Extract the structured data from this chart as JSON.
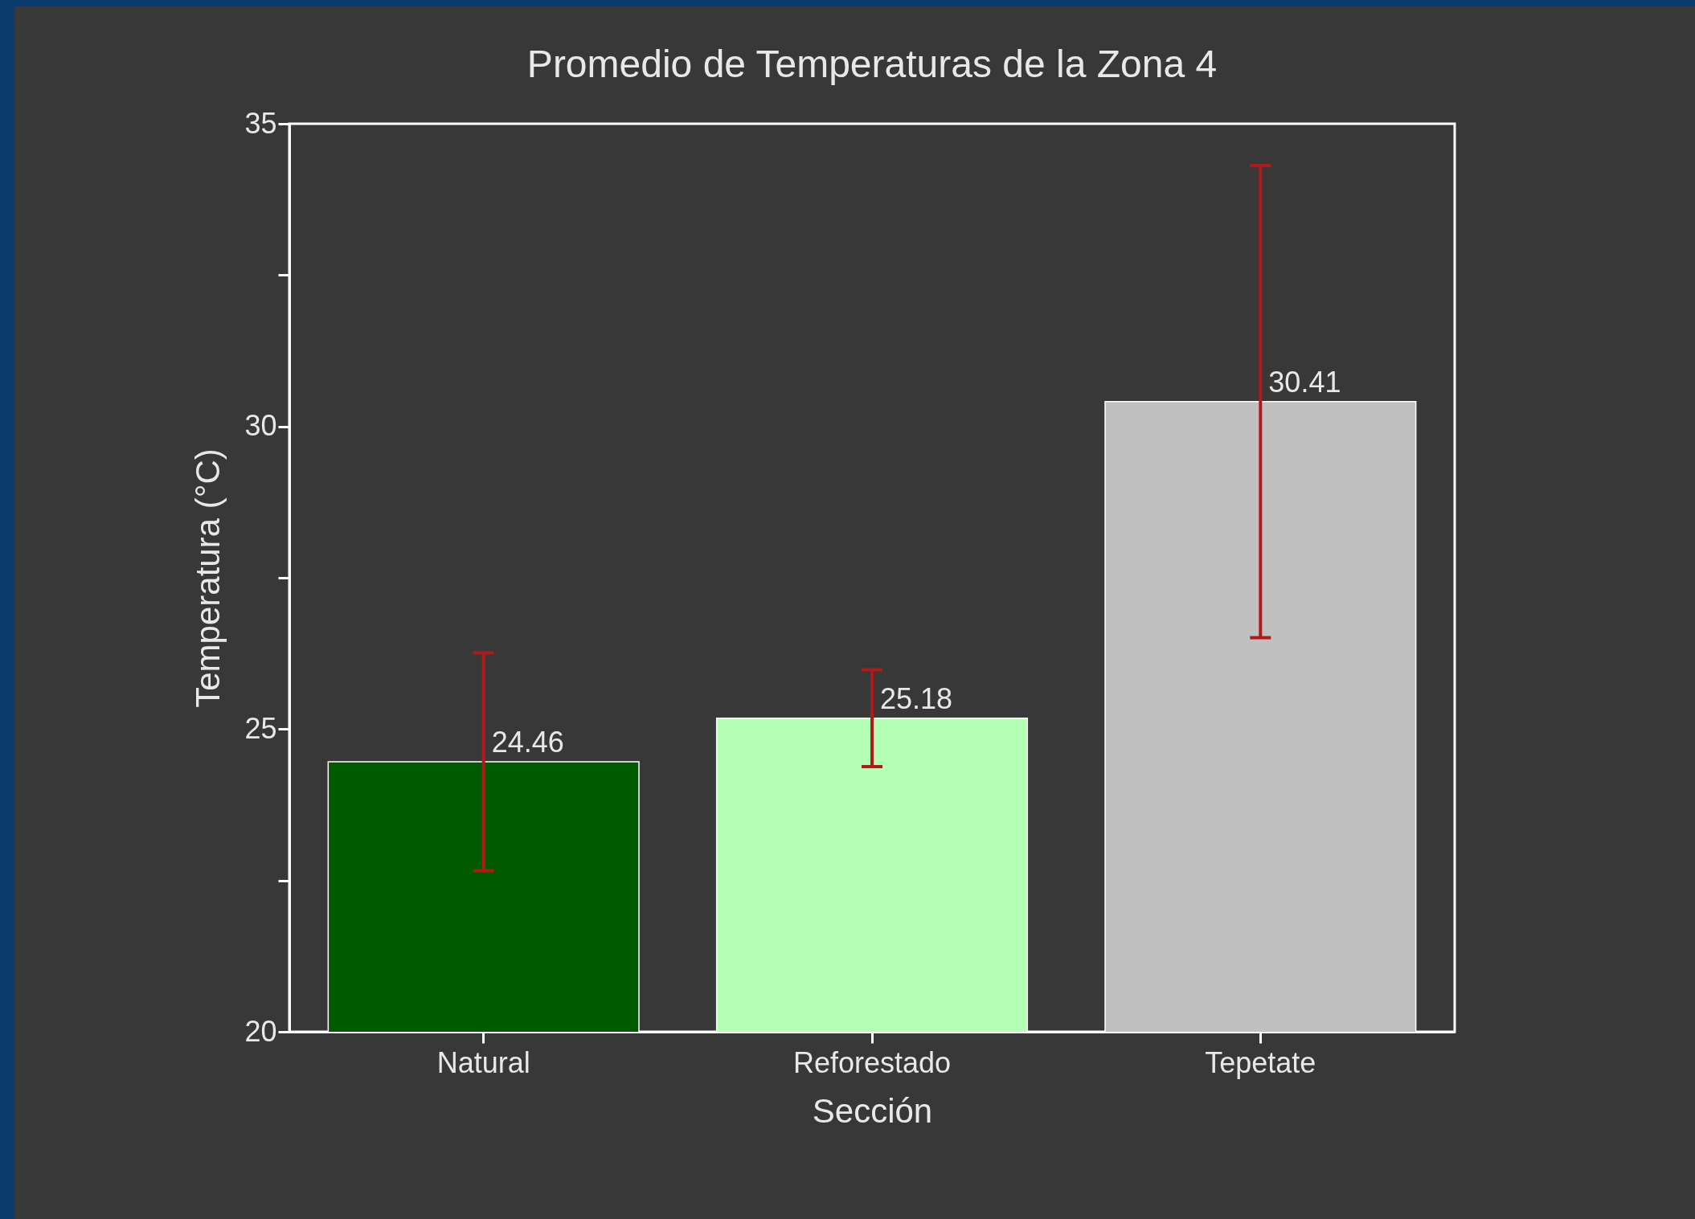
{
  "chart_data": {
    "type": "bar",
    "title": "Promedio de Temperaturas de la Zona 4",
    "xlabel": "Sección",
    "ylabel": "Temperatura (°C)",
    "categories": [
      "Natural",
      "Reforestado",
      "Tepetate"
    ],
    "values": [
      24.46,
      25.18,
      30.41
    ],
    "colors": [
      "#005a00",
      "#b3ffb3",
      "#c0c0c0"
    ],
    "errors": [
      1.8,
      0.8,
      3.9
    ],
    "data_labels": true,
    "ylim": [
      20,
      35
    ],
    "yticks": [
      20,
      {
        "value": 22.5,
        "label": null
      },
      25,
      {
        "value": 27.5,
        "label": null
      },
      30,
      {
        "value": 32.5,
        "label": null
      },
      35
    ],
    "grid": false
  }
}
